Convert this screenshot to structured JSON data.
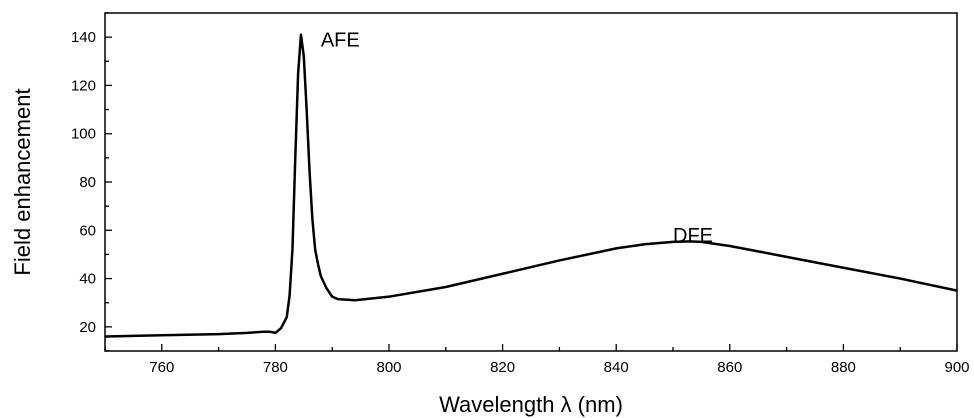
{
  "chart_data": {
    "type": "line",
    "xlabel": "Wavelength λ (nm)",
    "ylabel": "Field enhancement",
    "xlim": [
      750,
      900
    ],
    "ylim": [
      10,
      150
    ],
    "x_ticks": [
      760,
      780,
      800,
      820,
      840,
      860,
      880,
      900
    ],
    "y_ticks": [
      20,
      40,
      60,
      80,
      100,
      120,
      140
    ],
    "x_tick_labels": [
      "760",
      "780",
      "800",
      "820",
      "840",
      "860",
      "880",
      "900"
    ],
    "y_tick_labels": [
      "20",
      "40",
      "60",
      "80",
      100,
      120,
      140
    ],
    "grid": false,
    "annotations": [
      {
        "text": "AFE",
        "x": 788,
        "y": 139
      },
      {
        "text": "DFE",
        "x": 850,
        "y": 58
      }
    ],
    "series": [
      {
        "color": "#000000",
        "x": [
          750,
          760,
          770,
          775,
          778,
          779,
          780,
          781,
          782,
          782.5,
          783,
          783.5,
          784,
          784.5,
          785,
          785.5,
          786,
          786.5,
          787,
          787.5,
          788,
          789,
          790,
          791,
          794,
          800,
          810,
          820,
          830,
          840,
          845,
          850,
          853,
          855,
          860,
          870,
          880,
          890,
          900
        ],
        "y": [
          16,
          16.5,
          17,
          17.5,
          18,
          18,
          17.5,
          19.5,
          24,
          33,
          52,
          90,
          125,
          141,
          132,
          110,
          85,
          65,
          52,
          46,
          41,
          36,
          32.5,
          31.5,
          31,
          32.5,
          36.5,
          42,
          47.5,
          52.5,
          54.2,
          55.2,
          55.4,
          55.2,
          53.5,
          49,
          44.5,
          40,
          35
        ]
      }
    ]
  }
}
